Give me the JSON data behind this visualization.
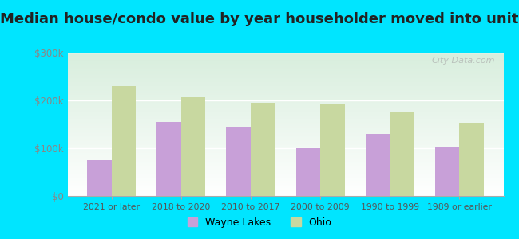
{
  "title": "Median house/condo value by year householder moved into unit",
  "categories": [
    "2021 or later",
    "2018 to 2020",
    "2010 to 2017",
    "2000 to 2009",
    "1990 to 1999",
    "1989 or earlier"
  ],
  "wayne_lakes": [
    75000,
    155000,
    143000,
    100000,
    130000,
    101000
  ],
  "ohio": [
    230000,
    207000,
    195000,
    193000,
    175000,
    153000
  ],
  "wayne_lakes_color": "#c8a0d8",
  "ohio_color": "#c8d8a0",
  "background_outer": "#00e5ff",
  "ylim": [
    0,
    300000
  ],
  "yticks": [
    0,
    100000,
    200000,
    300000
  ],
  "ytick_labels": [
    "$0",
    "$100k",
    "$200k",
    "$300k"
  ],
  "legend_wayne_lakes": "Wayne Lakes",
  "legend_ohio": "Ohio",
  "watermark": "City-Data.com",
  "title_fontsize": 13,
  "bar_width": 0.35
}
